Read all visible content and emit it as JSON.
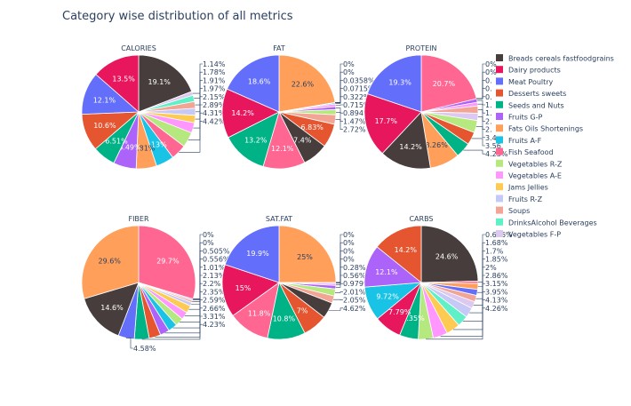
{
  "figure_title": "Category wise distribution of all metrics",
  "legend": {
    "placement": "right",
    "items": [
      {
        "name": "Breads cereals fastfoodgrains",
        "color": "#473d3d"
      },
      {
        "name": "Dairy products",
        "color": "#e8175d"
      },
      {
        "name": "Meat Poultry",
        "color": "#636efa"
      },
      {
        "name": "Desserts sweets",
        "color": "#e5552f"
      },
      {
        "name": "Seeds and Nuts",
        "color": "#00b386"
      },
      {
        "name": "Fruits G-P",
        "color": "#ab63fa"
      },
      {
        "name": "Fats Oils Shortenings",
        "color": "#ff9f5a"
      },
      {
        "name": "Fruits A-F",
        "color": "#19c3e6"
      },
      {
        "name": "Fish Seafood",
        "color": "#ff6692"
      },
      {
        "name": "Vegetables R-Z",
        "color": "#b6e880"
      },
      {
        "name": "Vegetables A-E",
        "color": "#ff97ff"
      },
      {
        "name": "Jams Jellies",
        "color": "#fecb52"
      },
      {
        "name": "Fruits R-Z",
        "color": "#c6c9f5"
      },
      {
        "name": "Soups",
        "color": "#f2a594"
      },
      {
        "name": "DrinksAlcohol Beverages",
        "color": "#5ff0c8"
      },
      {
        "name": "Vegetables F-P",
        "color": "#dcc8f0"
      }
    ]
  },
  "chart_data": [
    {
      "type": "pie",
      "title": "CALORIES",
      "slices": [
        {
          "category": "Breads cereals fastfoodgrains",
          "value": 19.1,
          "label": "19.1%"
        },
        {
          "category": "Vegetables F-P",
          "value": 1.14,
          "label": "1.14%"
        },
        {
          "category": "DrinksAlcohol Beverages",
          "value": 1.78,
          "label": "1.78%"
        },
        {
          "category": "Soups",
          "value": 1.91,
          "label": "1.91%"
        },
        {
          "category": "Fruits R-Z",
          "value": 1.97,
          "label": "1.97%"
        },
        {
          "category": "Jams Jellies",
          "value": 2.15,
          "label": "2.15%"
        },
        {
          "category": "Vegetables A-E",
          "value": 2.89,
          "label": "2.89%"
        },
        {
          "category": "Vegetables R-Z",
          "value": 4.31,
          "label": "4.31%"
        },
        {
          "category": "Fish Seafood",
          "value": 4.42,
          "label": "4.42%"
        },
        {
          "category": "Fruits A-F",
          "value": 5.13,
          "label": "5.13%"
        },
        {
          "category": "Fats Oils Shortenings",
          "value": 5.81,
          "label": "5.81%"
        },
        {
          "category": "Fruits G-P",
          "value": 6.49,
          "label": "6.49%"
        },
        {
          "category": "Seeds and Nuts",
          "value": 6.51,
          "label": "6.51%"
        },
        {
          "category": "Desserts sweets",
          "value": 10.6,
          "label": "10.6%"
        },
        {
          "category": "Meat Poultry",
          "value": 12.1,
          "label": "12.1%"
        },
        {
          "category": "Dairy products",
          "value": 13.5,
          "label": "13.5%"
        }
      ]
    },
    {
      "type": "pie",
      "title": "FAT",
      "slices": [
        {
          "category": "Fats Oils Shortenings",
          "value": 22.6,
          "label": "22.6%"
        },
        {
          "category": "Vegetables F-P",
          "value": 0,
          "label": "0%"
        },
        {
          "category": "DrinksAlcohol Beverages",
          "value": 0,
          "label": "0%"
        },
        {
          "category": "Fruits R-Z",
          "value": 0.0358,
          "label": "0.0358%"
        },
        {
          "category": "Jams Jellies",
          "value": 0.0715,
          "label": "0.0715%"
        },
        {
          "category": "Fruits A-F",
          "value": 0.322,
          "label": "0.322%"
        },
        {
          "category": "Vegetables A-E",
          "value": 0.715,
          "label": "0.715%"
        },
        {
          "category": "Fruits G-P",
          "value": 0.894,
          "label": "0.894%"
        },
        {
          "category": "Vegetables R-Z",
          "value": 1.47,
          "label": "1.47%"
        },
        {
          "category": "Soups",
          "value": 2.72,
          "label": "2.72%"
        },
        {
          "category": "Desserts sweets",
          "value": 6.83,
          "label": "6.83%"
        },
        {
          "category": "Breads cereals fastfoodgrains",
          "value": 7.4,
          "label": "7.4%"
        },
        {
          "category": "Fish Seafood",
          "value": 12.1,
          "label": "12.1%"
        },
        {
          "category": "Seeds and Nuts",
          "value": 13.2,
          "label": "13.2%"
        },
        {
          "category": "Dairy products",
          "value": 14.2,
          "label": "14.2%"
        },
        {
          "category": "Meat Poultry",
          "value": 18.6,
          "label": "18.6%"
        }
      ]
    },
    {
      "type": "pie",
      "title": "PROTEIN",
      "slices": [
        {
          "category": "Fish Seafood",
          "value": 20.7,
          "label": "20.7%"
        },
        {
          "category": "Fats Oils Shortenings",
          "value": 0,
          "label": "0%"
        },
        {
          "category": "Jams Jellies",
          "value": 0,
          "label": "0%"
        },
        {
          "category": "DrinksAlcohol Beverages",
          "value": 0,
          "label": "0."
        },
        {
          "category": "Fruits R-Z",
          "value": 0,
          "label": "0."
        },
        {
          "category": "Fruits A-F",
          "value": 0,
          "label": "0."
        },
        {
          "category": "Fruits G-P",
          "value": 1,
          "label": "1."
        },
        {
          "category": "Vegetables A-E",
          "value": 1,
          "label": "1."
        },
        {
          "category": "Soups",
          "value": 2,
          "label": "2."
        },
        {
          "category": "Vegetables F-P",
          "value": 2,
          "label": "2."
        },
        {
          "category": "Vegetables R-Z",
          "value": 3.4,
          "label": "3.4"
        },
        {
          "category": "Desserts sweets",
          "value": 3.56,
          "label": "3.56"
        },
        {
          "category": "Seeds and Nuts",
          "value": 4.23,
          "label": "4.23%"
        },
        {
          "category": "Fats Oils Shortenings",
          "value": 8.26,
          "label": "8.26%"
        },
        {
          "category": "Breads cereals fastfoodgrains",
          "value": 14.2,
          "label": "14.2%"
        },
        {
          "category": "Dairy products",
          "value": 17.7,
          "label": "17.7%"
        },
        {
          "category": "Meat Poultry",
          "value": 19.3,
          "label": "19.3%"
        }
      ]
    },
    {
      "type": "pie",
      "title": "FIBER",
      "slices": [
        {
          "category": "Fish Seafood",
          "value": 29.7,
          "label": "29.7%"
        },
        {
          "category": "Fats Oils Shortenings",
          "value": 0,
          "label": "0%"
        },
        {
          "category": "DrinksAlcohol Beverages",
          "value": 0,
          "label": "0%"
        },
        {
          "category": "Vegetables F-P",
          "value": 0.505,
          "label": "0.505%"
        },
        {
          "category": "Soups",
          "value": 0.556,
          "label": "0.556%"
        },
        {
          "category": "Fruits R-Z",
          "value": 1.01,
          "label": "1.01%"
        },
        {
          "category": "Jams Jellies",
          "value": 2.13,
          "label": "2.13%"
        },
        {
          "category": "Vegetables A-E",
          "value": 2.2,
          "label": "2.2%"
        },
        {
          "category": "Vegetables R-Z",
          "value": 2.35,
          "label": "2.35%"
        },
        {
          "category": "Fruits A-F",
          "value": 2.59,
          "label": "2.59%"
        },
        {
          "category": "Fruits G-P",
          "value": 2.66,
          "label": "2.66%"
        },
        {
          "category": "Desserts sweets",
          "value": 3.31,
          "label": "3.31%"
        },
        {
          "category": "Seeds and Nuts",
          "value": 4.23,
          "label": "4.23%"
        },
        {
          "category": "Meat Poultry",
          "value": 4.58,
          "label": "4.58%"
        },
        {
          "category": "Breads cereals fastfoodgrains",
          "value": 14.6,
          "label": "14.6%"
        },
        {
          "category": "Fats Oils Shortenings",
          "value": 29.6,
          "label": "29.6%"
        }
      ]
    },
    {
      "type": "pie",
      "title": "SAT.FAT",
      "slices": [
        {
          "category": "Fats Oils Shortenings",
          "value": 25,
          "label": "25%"
        },
        {
          "category": "Vegetables F-P",
          "value": 0,
          "label": "0%"
        },
        {
          "category": "DrinksAlcohol Beverages",
          "value": 0,
          "label": "0%"
        },
        {
          "category": "Fruits R-Z",
          "value": 0,
          "label": "0%"
        },
        {
          "category": "Jams Jellies",
          "value": 0,
          "label": "0%"
        },
        {
          "category": "Fruits A-F",
          "value": 0.28,
          "label": "0.28%"
        },
        {
          "category": "Vegetables A-E",
          "value": 0.56,
          "label": "0.56%"
        },
        {
          "category": "Fruits G-P",
          "value": 0.979,
          "label": "0.979%"
        },
        {
          "category": "Vegetables R-Z",
          "value": 2.01,
          "label": "2.01%"
        },
        {
          "category": "Soups",
          "value": 2.05,
          "label": "2.05%"
        },
        {
          "category": "Breads cereals fastfoodgrains",
          "value": 4.62,
          "label": "4.62%"
        },
        {
          "category": "Desserts sweets",
          "value": 7,
          "label": "7%"
        },
        {
          "category": "Seeds and Nuts",
          "value": 10.8,
          "label": "10.8%"
        },
        {
          "category": "Fish Seafood",
          "value": 11.8,
          "label": "11.8%"
        },
        {
          "category": "Dairy products",
          "value": 15,
          "label": "15%"
        },
        {
          "category": "Meat Poultry",
          "value": 19.9,
          "label": "19.9%"
        }
      ]
    },
    {
      "type": "pie",
      "title": "CARBS",
      "slices": [
        {
          "category": "Breads cereals fastfoodgrains",
          "value": 24.6,
          "label": "24.6%"
        },
        {
          "category": "Fish Seafood",
          "value": 0.686,
          "label": "0.686%"
        },
        {
          "category": "Fats Oils Shortenings",
          "value": 1.68,
          "label": "1.68%"
        },
        {
          "category": "Meat Poultry",
          "value": 1.7,
          "label": "1.7%"
        },
        {
          "category": "Soups",
          "value": 1.85,
          "label": "1.85%"
        },
        {
          "category": "Vegetables F-P",
          "value": 2,
          "label": "2%"
        },
        {
          "category": "Fruits R-Z",
          "value": 2.86,
          "label": "2.86%"
        },
        {
          "category": "DrinksAlcohol Beverages",
          "value": 3.15,
          "label": "3.15%"
        },
        {
          "category": "Jams Jellies",
          "value": 3.95,
          "label": "3.95%"
        },
        {
          "category": "Vegetables A-E",
          "value": 4.13,
          "label": "4.13%"
        },
        {
          "category": "Vegetables R-Z",
          "value": 4.26,
          "label": "4.26%"
        },
        {
          "category": "Seeds and Nuts",
          "value": 5.35,
          "label": "5.35%"
        },
        {
          "category": "Dairy products",
          "value": 7.79,
          "label": "7.79%"
        },
        {
          "category": "Fruits A-F",
          "value": 9.72,
          "label": "9.72%"
        },
        {
          "category": "Fruits G-P",
          "value": 12.1,
          "label": "12.1%"
        },
        {
          "category": "Desserts sweets",
          "value": 14.2,
          "label": "14.2%"
        }
      ]
    }
  ]
}
